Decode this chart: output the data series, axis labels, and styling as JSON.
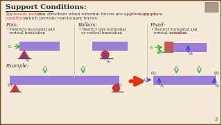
{
  "bg_color": "#f5ead8",
  "border_color": "#7a4a2a",
  "title": "Support Conditions:",
  "pin_title": "Pins:",
  "pin_bullet1": "• Restricts horizontal and",
  "pin_bullet2": "  vertical translation",
  "roller_title": "Rollers:",
  "roller_bullet1": "• Restrict only horizontal",
  "roller_bullet2": "  or vertical translation",
  "fixed_title": "Fixed:",
  "fixed_bullet1": "• Restrict horizontal and",
  "fixed_bullet2": "  vertical as well as ",
  "fixed_bullet2_red": "rotation",
  "example_label": "Example:",
  "purple_color": "#9b7fd4",
  "red_color": "#cc3333",
  "green_color": "#33aa33",
  "blue_color": "#4444cc",
  "orange_red": "#dd3311",
  "dark_color": "#333333",
  "ground_color": "#555555",
  "slide_number": "3"
}
